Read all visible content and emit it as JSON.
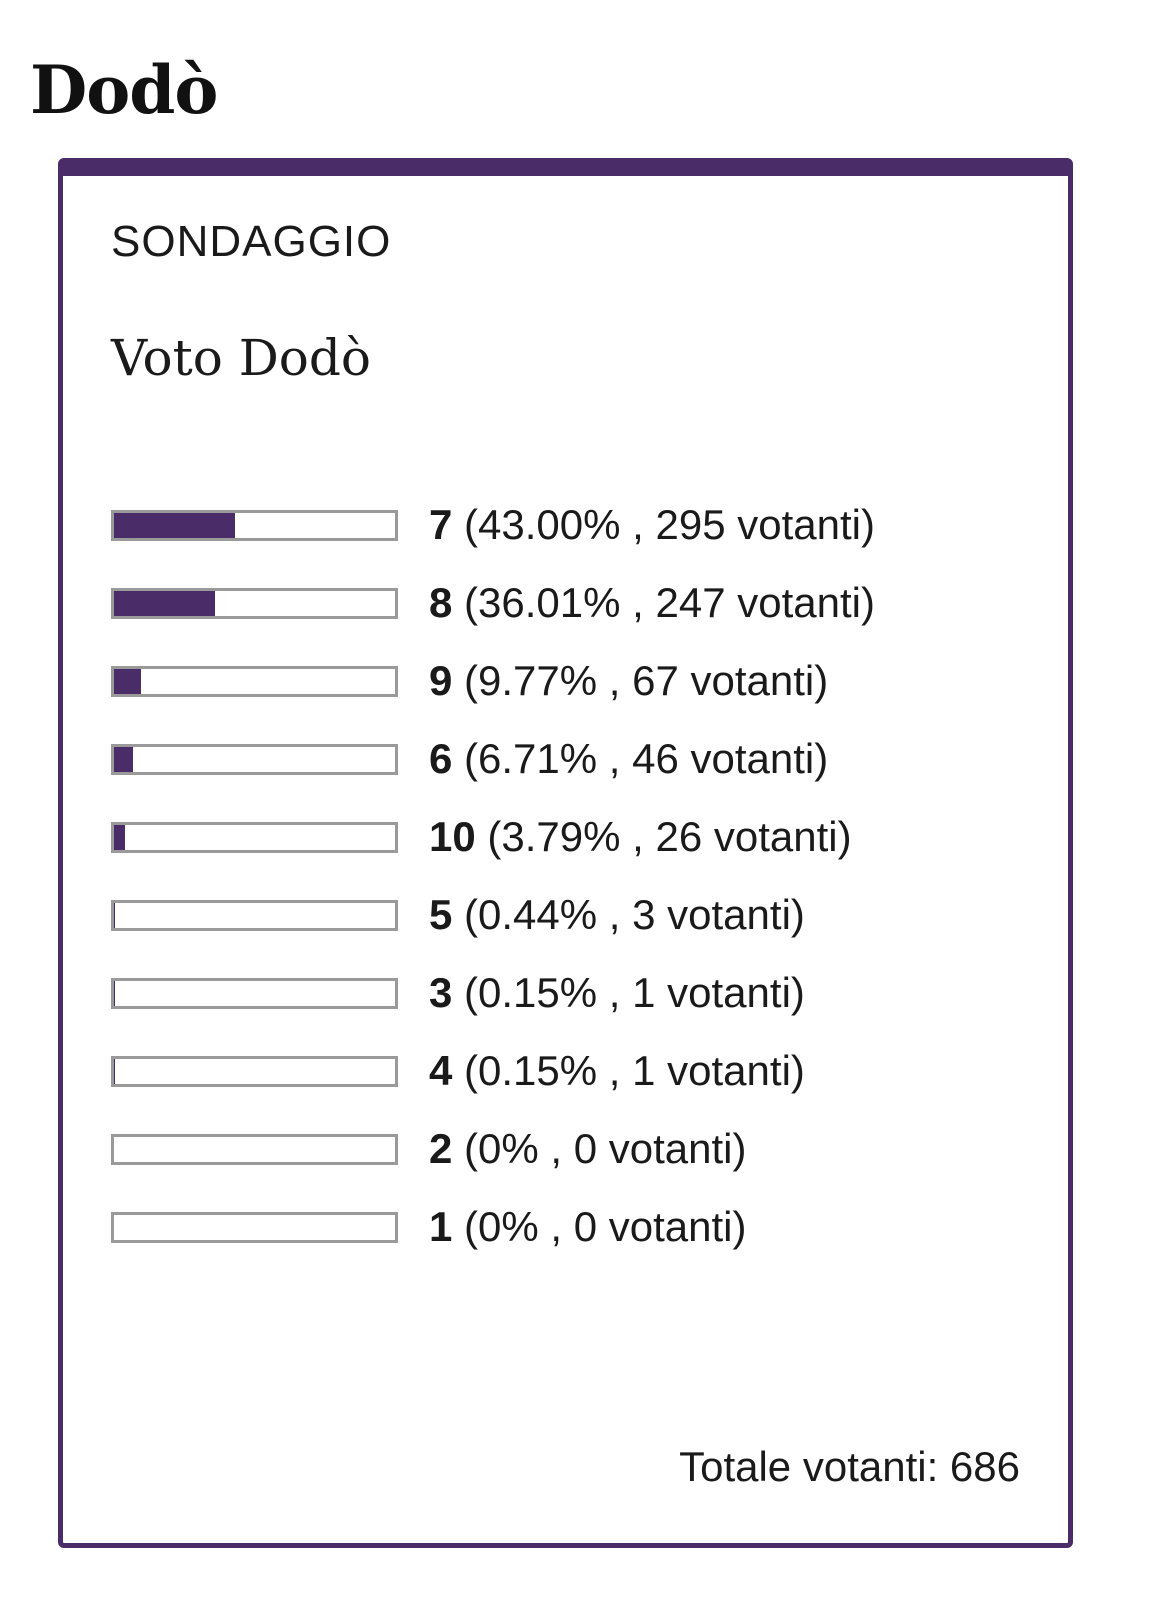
{
  "page": {
    "title": "Dodò"
  },
  "poll": {
    "kicker": "SONDAGGIO",
    "question": "Voto Dodò",
    "accent_color": "#4a2d68",
    "track_border_color": "#9a9a9a",
    "options": [
      {
        "label": "7",
        "percent": 43.0,
        "percent_text": "43.00%",
        "votes_text": "295 votanti"
      },
      {
        "label": "8",
        "percent": 36.01,
        "percent_text": "36.01%",
        "votes_text": "247 votanti"
      },
      {
        "label": "9",
        "percent": 9.77,
        "percent_text": "9.77%",
        "votes_text": "67 votanti"
      },
      {
        "label": "6",
        "percent": 6.71,
        "percent_text": "6.71%",
        "votes_text": "46 votanti"
      },
      {
        "label": "10",
        "percent": 3.79,
        "percent_text": "3.79%",
        "votes_text": "26 votanti"
      },
      {
        "label": "5",
        "percent": 0.44,
        "percent_text": "0.44%",
        "votes_text": "3 votanti"
      },
      {
        "label": "3",
        "percent": 0.15,
        "percent_text": "0.15%",
        "votes_text": "1 votanti"
      },
      {
        "label": "4",
        "percent": 0.15,
        "percent_text": "0.15%",
        "votes_text": "1 votanti"
      },
      {
        "label": "2",
        "percent": 0,
        "percent_text": "0%",
        "votes_text": "0 votanti"
      },
      {
        "label": "1",
        "percent": 0,
        "percent_text": "0%",
        "votes_text": "0 votanti"
      }
    ],
    "total_text": "Totale votanti: 686"
  }
}
